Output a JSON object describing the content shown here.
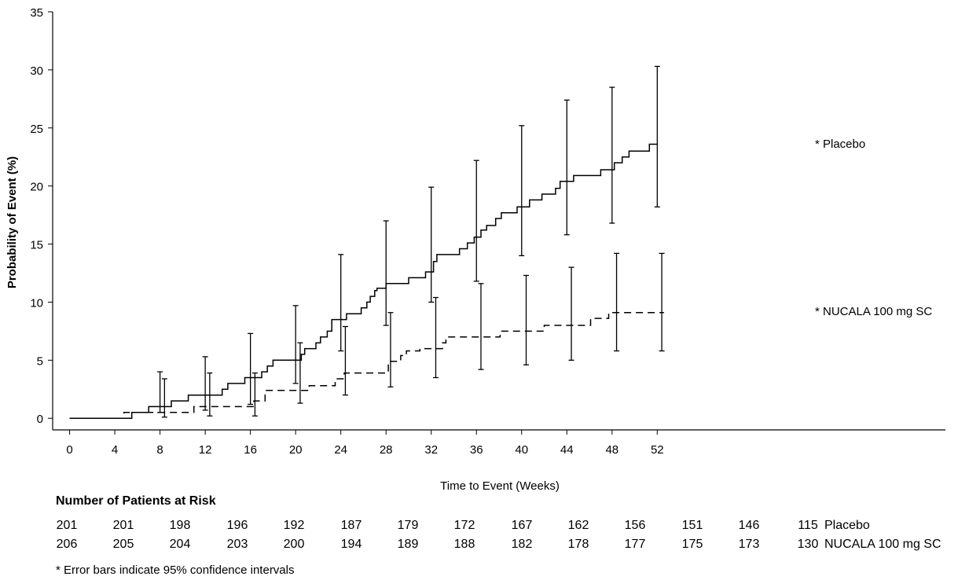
{
  "chart_data": {
    "type": "line",
    "ylabel": "Probability of Event (%)",
    "xlabel": "Time to Event (Weeks)",
    "xlim": [
      -1.5,
      77.5
    ],
    "ylim": [
      -1,
      35
    ],
    "x_ticks": [
      0,
      4,
      8,
      12,
      16,
      20,
      24,
      28,
      32,
      36,
      40,
      44,
      48,
      52
    ],
    "y_ticks": [
      0,
      5,
      10,
      15,
      20,
      25,
      30,
      35
    ],
    "series": [
      {
        "name": "* Placebo",
        "line_style": "solid",
        "steps": [
          [
            0,
            0
          ],
          [
            5.5,
            0.5
          ],
          [
            7.0,
            1.0
          ],
          [
            9.0,
            1.5
          ],
          [
            10.5,
            2.0
          ],
          [
            13.5,
            2.5
          ],
          [
            14.0,
            3.0
          ],
          [
            15.5,
            3.5
          ],
          [
            17.0,
            4.0
          ],
          [
            17.5,
            4.5
          ],
          [
            18.0,
            5.0
          ],
          [
            20.5,
            5.5
          ],
          [
            20.8,
            6.0
          ],
          [
            21.8,
            6.5
          ],
          [
            22.2,
            7.0
          ],
          [
            22.8,
            7.5
          ],
          [
            23.2,
            8.5
          ],
          [
            24.5,
            9.0
          ],
          [
            25.8,
            9.5
          ],
          [
            26.3,
            10.0
          ],
          [
            26.6,
            10.5
          ],
          [
            27.0,
            11.0
          ],
          [
            27.2,
            11.2
          ],
          [
            28.0,
            11.6
          ],
          [
            30.0,
            12.1
          ],
          [
            31.5,
            12.6
          ],
          [
            32.2,
            13.5
          ],
          [
            32.5,
            14.1
          ],
          [
            34.5,
            14.6
          ],
          [
            35.2,
            15.1
          ],
          [
            35.8,
            15.6
          ],
          [
            36.4,
            16.2
          ],
          [
            36.9,
            16.6
          ],
          [
            37.7,
            17.2
          ],
          [
            38.2,
            17.7
          ],
          [
            39.6,
            18.2
          ],
          [
            40.7,
            18.8
          ],
          [
            41.8,
            19.3
          ],
          [
            43.0,
            19.8
          ],
          [
            43.4,
            20.4
          ],
          [
            44.6,
            20.9
          ],
          [
            47.0,
            21.4
          ],
          [
            48.2,
            22.0
          ],
          [
            48.9,
            22.5
          ],
          [
            49.5,
            23.0
          ],
          [
            51.3,
            23.6
          ],
          [
            52.0,
            23.6
          ]
        ]
      },
      {
        "name": "* NUCALA 100 mg SC",
        "line_style": "dashed",
        "steps": [
          [
            0,
            0
          ],
          [
            4.8,
            0.5
          ],
          [
            11.0,
            1.0
          ],
          [
            16.3,
            1.5
          ],
          [
            17.3,
            2.4
          ],
          [
            21.2,
            2.8
          ],
          [
            23.5,
            3.4
          ],
          [
            24.3,
            3.9
          ],
          [
            28.2,
            4.9
          ],
          [
            29.3,
            5.4
          ],
          [
            29.8,
            5.8
          ],
          [
            31.0,
            6.0
          ],
          [
            33.0,
            6.5
          ],
          [
            33.3,
            7.0
          ],
          [
            38.1,
            7.5
          ],
          [
            42.0,
            8.0
          ],
          [
            46.1,
            8.6
          ],
          [
            47.7,
            9.1
          ],
          [
            52.6,
            9.1
          ]
        ]
      }
    ],
    "error_bars": [
      {
        "series": "* Placebo",
        "points": [
          [
            8.0,
            0.5,
            4.0
          ],
          [
            12.0,
            0.7,
            5.3
          ],
          [
            16.0,
            1.2,
            7.3
          ],
          [
            20.0,
            3.0,
            9.7
          ],
          [
            24.0,
            5.8,
            14.1
          ],
          [
            28.0,
            8.0,
            17.0
          ],
          [
            32.0,
            10.0,
            19.9
          ],
          [
            36.0,
            11.8,
            22.2
          ],
          [
            40.0,
            14.0,
            25.2
          ],
          [
            44.0,
            15.8,
            27.4
          ],
          [
            48.0,
            16.8,
            28.5
          ],
          [
            52.0,
            18.2,
            30.3
          ]
        ]
      },
      {
        "series": "* NUCALA 100 mg SC",
        "points": [
          [
            8.4,
            0.1,
            3.4
          ],
          [
            12.4,
            0.2,
            3.9
          ],
          [
            16.4,
            0.2,
            3.9
          ],
          [
            20.4,
            1.3,
            6.5
          ],
          [
            24.4,
            2.0,
            7.9
          ],
          [
            28.4,
            2.7,
            9.1
          ],
          [
            32.4,
            3.5,
            10.4
          ],
          [
            36.4,
            4.2,
            11.6
          ],
          [
            40.4,
            4.6,
            12.3
          ],
          [
            44.4,
            5.0,
            13.0
          ],
          [
            48.4,
            5.8,
            14.2
          ],
          [
            52.4,
            5.8,
            14.2
          ]
        ]
      }
    ],
    "risk_table": {
      "title": "Number of Patients at Risk",
      "timepoints": [
        0,
        4,
        8,
        12,
        16,
        20,
        24,
        28,
        32,
        36,
        40,
        44,
        48,
        52
      ],
      "rows": [
        {
          "label": "Placebo",
          "values": [
            201,
            201,
            198,
            196,
            192,
            187,
            179,
            172,
            167,
            162,
            156,
            151,
            146,
            115
          ]
        },
        {
          "label": "NUCALA 100 mg SC",
          "values": [
            206,
            205,
            204,
            203,
            200,
            194,
            189,
            188,
            182,
            178,
            177,
            175,
            173,
            130
          ]
        }
      ]
    },
    "footnote": "* Error bars indicate 95% confidence intervals"
  }
}
